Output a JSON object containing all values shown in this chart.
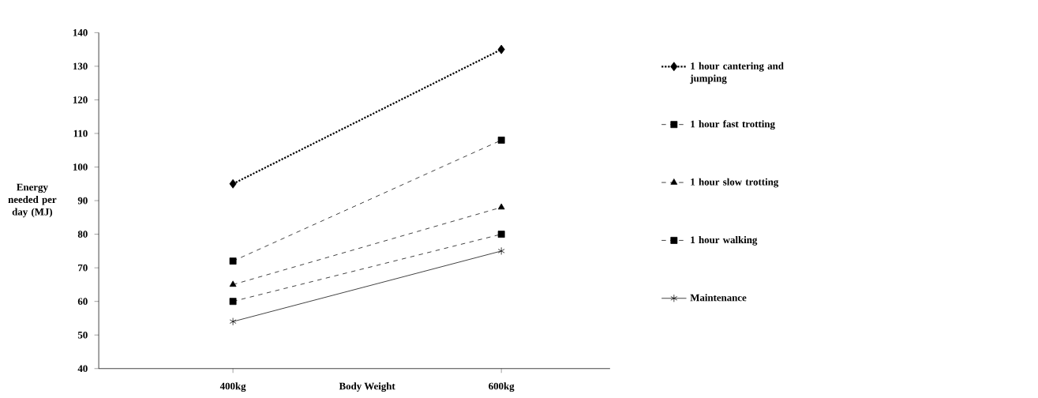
{
  "chart_data": {
    "type": "line",
    "xlabel": "Body Weight",
    "ylabel": "Energy needed per day (MJ)",
    "categories": [
      "400kg",
      "600kg"
    ],
    "ylim": [
      40,
      140
    ],
    "yticks": [
      40,
      50,
      60,
      70,
      80,
      90,
      100,
      110,
      120,
      130,
      140
    ],
    "grid": false,
    "legend": "right",
    "series": [
      {
        "name": "1 hour cantering and jumping",
        "color": "#000000",
        "values": [
          95,
          135
        ],
        "marker": "diamond",
        "line_style": "dotted"
      },
      {
        "name": "1 hour fast trotting",
        "color": "#000000",
        "values": [
          72,
          108
        ],
        "marker": "square",
        "line_style": "dashed"
      },
      {
        "name": "1 hour slow trotting",
        "color": "#000000",
        "values": [
          65,
          88
        ],
        "marker": "triangle",
        "line_style": "dashed"
      },
      {
        "name": "1 hour walking",
        "color": "#000000",
        "values": [
          60,
          80
        ],
        "marker": "square",
        "line_style": "dashed"
      },
      {
        "name": "Maintenance",
        "color": "#000000",
        "values": [
          54,
          75
        ],
        "marker": "cross",
        "line_style": "solid"
      }
    ]
  }
}
